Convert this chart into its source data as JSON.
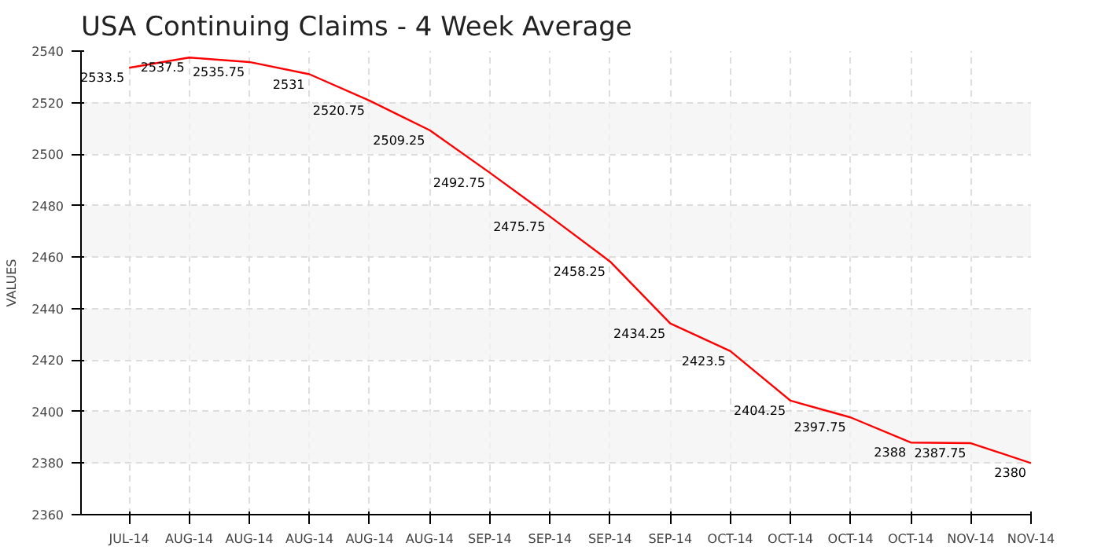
{
  "chart_data": {
    "type": "line",
    "title": "USA Continuing Claims - 4 Week Average",
    "ylabel": "VALUES",
    "categories": [
      "JUL-14",
      "AUG-14",
      "AUG-14",
      "AUG-14",
      "AUG-14",
      "AUG-14",
      "SEP-14",
      "SEP-14",
      "SEP-14",
      "SEP-14",
      "OCT-14",
      "OCT-14",
      "OCT-14",
      "OCT-14",
      "NOV-14",
      "NOV-14"
    ],
    "series": [
      {
        "color": "#ff0000",
        "values": [
          2533.5,
          2537.5,
          2535.75,
          2531,
          2520.75,
          2509.25,
          2492.75,
          2475.75,
          2458.25,
          2434.25,
          2423.5,
          2404.25,
          2397.75,
          2388,
          2387.75,
          2380
        ]
      }
    ],
    "ylim": [
      2360,
      2540
    ],
    "yticks": [
      2360,
      2380,
      2400,
      2420,
      2440,
      2460,
      2480,
      2500,
      2520,
      2540
    ],
    "grid": true,
    "data_labels": true,
    "marker": "none"
  }
}
